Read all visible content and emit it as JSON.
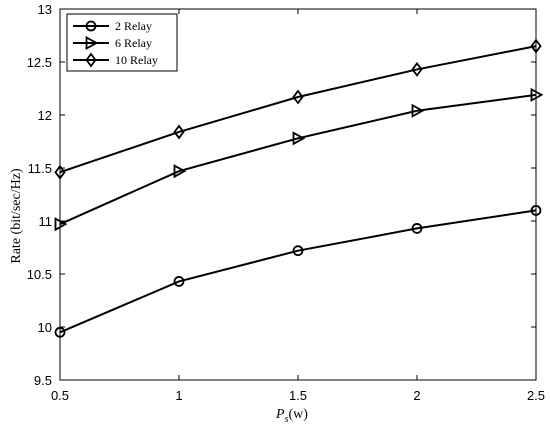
{
  "chart_data": {
    "type": "line",
    "title": "",
    "xlabel_main": "P",
    "xlabel_sub": "s",
    "xlabel_unit": "(w)",
    "ylabel": "Rate (bit/sec/Hz)",
    "x": [
      0.5,
      1,
      1.5,
      2,
      2.5
    ],
    "xlim": [
      0.5,
      2.5
    ],
    "ylim": [
      9.5,
      13
    ],
    "xticks": [
      0.5,
      1,
      1.5,
      2,
      2.5
    ],
    "xtick_labels": [
      "0.5",
      "1",
      "1.5",
      "2",
      "2.5"
    ],
    "yticks": [
      9.5,
      10,
      10.5,
      11,
      11.5,
      12,
      12.5,
      13
    ],
    "ytick_labels": [
      "9.5",
      "10",
      "10.5",
      "11",
      "11.5",
      "12",
      "12.5",
      "13"
    ],
    "grid": false,
    "legend_position": "top-left",
    "series": [
      {
        "name": "2 Relay",
        "marker": "circle",
        "values": [
          9.95,
          10.43,
          10.72,
          10.93,
          11.1
        ]
      },
      {
        "name": "6 Relay",
        "marker": "triangle-right",
        "values": [
          10.97,
          11.47,
          11.78,
          12.04,
          12.19
        ]
      },
      {
        "name": "10 Relay",
        "marker": "diamond",
        "values": [
          11.46,
          11.84,
          12.17,
          12.43,
          12.65
        ]
      }
    ],
    "colors": {
      "line": "#000000",
      "background": "#ffffff"
    }
  }
}
